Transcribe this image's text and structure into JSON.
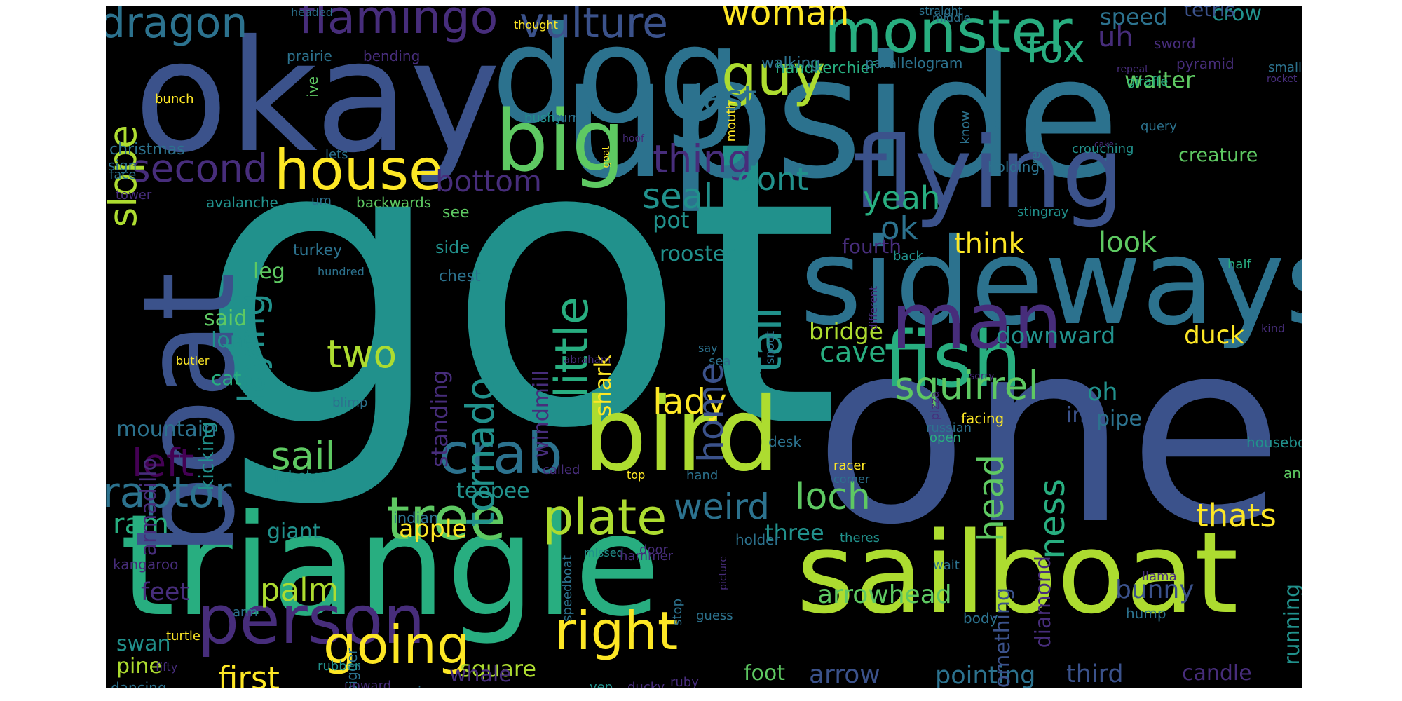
{
  "colors": {
    "background": "#000000",
    "page": "#ffffff",
    "palette": [
      "#440154",
      "#472d7b",
      "#3b528b",
      "#2c728e",
      "#21918c",
      "#28ae80",
      "#5ec962",
      "#addc30",
      "#fde725"
    ]
  },
  "words": [
    {
      "text": "got",
      "color": "#21918c"
    },
    {
      "text": "one",
      "color": "#3b528b"
    },
    {
      "text": "triangle",
      "color": "#28ae80"
    },
    {
      "text": "upside",
      "color": "#2c728e"
    },
    {
      "text": "okay",
      "color": "#3b528b"
    },
    {
      "text": "sailboat",
      "color": "#addc30"
    },
    {
      "text": "dog",
      "color": "#2c728e"
    },
    {
      "text": "sideways",
      "color": "#2c728e"
    },
    {
      "text": "boat",
      "color": "#3b528b"
    },
    {
      "text": "flying",
      "color": "#3b528b"
    },
    {
      "text": "bird",
      "color": "#addc30"
    },
    {
      "text": "fish",
      "color": "#28ae80"
    },
    {
      "text": "man",
      "color": "#472d7b"
    },
    {
      "text": "person",
      "color": "#472d7b"
    },
    {
      "text": "big",
      "color": "#5ec962"
    },
    {
      "text": "monster",
      "color": "#28ae80"
    },
    {
      "text": "flamingo",
      "color": "#472d7b"
    },
    {
      "text": "dragon",
      "color": "#2c728e"
    },
    {
      "text": "vulture",
      "color": "#3b528b"
    },
    {
      "text": "house",
      "color": "#fde725"
    },
    {
      "text": "tree",
      "color": "#5ec962"
    },
    {
      "text": "crab",
      "color": "#2c728e"
    },
    {
      "text": "guy",
      "color": "#addc30"
    },
    {
      "text": "going",
      "color": "#fde725"
    },
    {
      "text": "right",
      "color": "#fde725"
    },
    {
      "text": "squirrel",
      "color": "#5ec962"
    },
    {
      "text": "plate",
      "color": "#addc30"
    },
    {
      "text": "fox",
      "color": "#28ae80"
    },
    {
      "text": "woman",
      "color": "#fde725"
    },
    {
      "text": "second",
      "color": "#472d7b"
    },
    {
      "text": "last",
      "color": "#2c728e"
    },
    {
      "text": "thing",
      "color": "#472d7b"
    },
    {
      "text": "little",
      "color": "#28ae80"
    },
    {
      "text": "tail",
      "color": "#21918c"
    },
    {
      "text": "slope",
      "color": "#addc30"
    },
    {
      "text": "laying",
      "color": "#21918c"
    },
    {
      "text": "raptor",
      "color": "#2c728e"
    },
    {
      "text": "left",
      "color": "#440154"
    },
    {
      "text": "sail",
      "color": "#5ec962"
    },
    {
      "text": "two",
      "color": "#addc30"
    },
    {
      "text": "lady",
      "color": "#fde725"
    },
    {
      "text": "tornado",
      "color": "#21918c"
    },
    {
      "text": "loch",
      "color": "#5ec962"
    },
    {
      "text": "weird",
      "color": "#2c728e"
    },
    {
      "text": "head",
      "color": "#5ec962"
    },
    {
      "text": "ness",
      "color": "#28ae80"
    },
    {
      "text": "thats",
      "color": "#fde725"
    },
    {
      "text": "bottom",
      "color": "#472d7b"
    },
    {
      "text": "seal",
      "color": "#21918c"
    },
    {
      "text": "dont",
      "color": "#21918c"
    },
    {
      "text": "yeah",
      "color": "#28ae80"
    },
    {
      "text": "ok",
      "color": "#2c728e"
    },
    {
      "text": "think",
      "color": "#fde725"
    },
    {
      "text": "look",
      "color": "#5ec962"
    },
    {
      "text": "uh",
      "color": "#472d7b"
    },
    {
      "text": "speed",
      "color": "#2c728e"
    },
    {
      "text": "crow",
      "color": "#21918c"
    },
    {
      "text": "waiter",
      "color": "#5ec962"
    },
    {
      "text": "creature",
      "color": "#5ec962"
    },
    {
      "text": "home",
      "color": "#3b528b"
    },
    {
      "text": "pot",
      "color": "#21918c"
    },
    {
      "text": "rooster",
      "color": "#21918c"
    },
    {
      "text": "cave",
      "color": "#28ae80"
    },
    {
      "text": "bridge",
      "color": "#addc30"
    },
    {
      "text": "downward",
      "color": "#21918c"
    },
    {
      "text": "duck",
      "color": "#fde725"
    },
    {
      "text": "oh",
      "color": "#21918c"
    },
    {
      "text": "im",
      "color": "#3b528b"
    },
    {
      "text": "pipe",
      "color": "#2c728e"
    },
    {
      "text": "fourth",
      "color": "#472d7b"
    },
    {
      "text": "palm",
      "color": "#addc30"
    },
    {
      "text": "first",
      "color": "#fde725"
    },
    {
      "text": "arrowhead",
      "color": "#5ec962"
    },
    {
      "text": "arrow",
      "color": "#3b528b"
    },
    {
      "text": "pointing",
      "color": "#2c728e"
    },
    {
      "text": "third",
      "color": "#3b528b"
    },
    {
      "text": "candle",
      "color": "#472d7b"
    },
    {
      "text": "bunny",
      "color": "#3b528b"
    },
    {
      "text": "running",
      "color": "#21918c"
    },
    {
      "text": "diamond",
      "color": "#472d7b"
    },
    {
      "text": "something",
      "color": "#3b528b"
    },
    {
      "text": "square",
      "color": "#addc30"
    },
    {
      "text": "whale",
      "color": "#472d7b"
    },
    {
      "text": "foot",
      "color": "#5ec962"
    },
    {
      "text": "apple",
      "color": "#fde725"
    },
    {
      "text": "ram",
      "color": "#28ae80"
    },
    {
      "text": "giant",
      "color": "#21918c"
    },
    {
      "text": "three",
      "color": "#21918c"
    },
    {
      "text": "feet",
      "color": "#472d7b"
    },
    {
      "text": "swan",
      "color": "#21918c"
    },
    {
      "text": "pine",
      "color": "#addc30"
    },
    {
      "text": "mountain",
      "color": "#2c728e"
    },
    {
      "text": "cat",
      "color": "#28ae80"
    },
    {
      "text": "long",
      "color": "#21918c"
    },
    {
      "text": "said",
      "color": "#5ec962"
    },
    {
      "text": "leg",
      "color": "#5ec962"
    },
    {
      "text": "standing",
      "color": "#472d7b"
    },
    {
      "text": "shark",
      "color": "#fde725"
    },
    {
      "text": "windmill",
      "color": "#472d7b"
    },
    {
      "text": "teepee",
      "color": "#21918c"
    },
    {
      "text": "armadillo",
      "color": "#472d7b"
    },
    {
      "text": "kicking",
      "color": "#21918c"
    },
    {
      "text": "christmas",
      "color": "#2c728e"
    },
    {
      "text": "side",
      "color": "#21918c"
    },
    {
      "text": "see",
      "color": "#5ec962"
    },
    {
      "text": "turkey",
      "color": "#2c728e"
    },
    {
      "text": "chest",
      "color": "#2c728e"
    },
    {
      "text": "lobster",
      "color": "#21918c"
    },
    {
      "text": "indian",
      "color": "#2c728e"
    },
    {
      "text": "dancing",
      "color": "#2c728e"
    },
    {
      "text": "bigger",
      "color": "#2c728e"
    },
    {
      "text": "kangaroo",
      "color": "#472d7b"
    },
    {
      "text": "handkerchief",
      "color": "#28ae80"
    },
    {
      "text": "walking",
      "color": "#2c728e"
    },
    {
      "text": "parallelogram",
      "color": "#2c728e"
    },
    {
      "text": "tetris",
      "color": "#3b528b"
    },
    {
      "text": "sword",
      "color": "#472d7b"
    },
    {
      "text": "smaller",
      "color": "#2c728e"
    },
    {
      "text": "pyramid",
      "color": "#472d7b"
    },
    {
      "text": "giraffe",
      "color": "#28ae80"
    },
    {
      "text": "query",
      "color": "#2c728e"
    },
    {
      "text": "crouching",
      "color": "#21918c"
    },
    {
      "text": "holding",
      "color": "#2c728e"
    },
    {
      "text": "regular",
      "color": "#2c728e"
    },
    {
      "text": "know",
      "color": "#2c728e"
    },
    {
      "text": "prairie",
      "color": "#2c728e"
    },
    {
      "text": "bending",
      "color": "#472d7b"
    },
    {
      "text": "bushy",
      "color": "#21918c"
    },
    {
      "text": "turn",
      "color": "#2c728e"
    },
    {
      "text": "face",
      "color": "#2c728e"
    },
    {
      "text": "lets",
      "color": "#2c728e"
    },
    {
      "text": "avalanche",
      "color": "#21918c"
    },
    {
      "text": "backwards",
      "color": "#5ec962"
    },
    {
      "text": "um",
      "color": "#2c728e"
    },
    {
      "text": "stingray",
      "color": "#21918c"
    },
    {
      "text": "back",
      "color": "#21918c"
    },
    {
      "text": "half",
      "color": "#28ae80"
    },
    {
      "text": "lincoln",
      "color": "#2c728e"
    },
    {
      "text": "facing",
      "color": "#fde725"
    },
    {
      "text": "open",
      "color": "#28ae80"
    },
    {
      "text": "russian",
      "color": "#2c728e"
    },
    {
      "text": "houseboat",
      "color": "#21918c"
    },
    {
      "text": "animal",
      "color": "#5ec962"
    },
    {
      "text": "racer",
      "color": "#fde725"
    },
    {
      "text": "corner",
      "color": "#2c728e"
    },
    {
      "text": "theres",
      "color": "#21918c"
    },
    {
      "text": "holder",
      "color": "#2c728e"
    },
    {
      "text": "wait",
      "color": "#2c728e"
    },
    {
      "text": "desk",
      "color": "#2c728e"
    },
    {
      "text": "hand",
      "color": "#2c728e"
    },
    {
      "text": "top",
      "color": "#fde725"
    },
    {
      "text": "called",
      "color": "#472d7b"
    },
    {
      "text": "speedboat",
      "color": "#2c728e"
    },
    {
      "text": "missed",
      "color": "#21918c"
    },
    {
      "text": "door",
      "color": "#472d7b"
    },
    {
      "text": "hammer",
      "color": "#472d7b"
    },
    {
      "text": "stop",
      "color": "#2c728e"
    },
    {
      "text": "guess",
      "color": "#2c728e"
    },
    {
      "text": "ruby",
      "color": "#472d7b"
    },
    {
      "text": "body",
      "color": "#2c728e"
    },
    {
      "text": "hump",
      "color": "#2c728e"
    },
    {
      "text": "llama",
      "color": "#472d7b"
    },
    {
      "text": "arm",
      "color": "#2c728e"
    },
    {
      "text": "rubber",
      "color": "#21918c"
    },
    {
      "text": "upward",
      "color": "#472d7b"
    },
    {
      "text": "iron",
      "color": "#2c728e"
    },
    {
      "text": "yep",
      "color": "#21918c"
    },
    {
      "text": "ducky",
      "color": "#472d7b"
    },
    {
      "text": "turtle",
      "color": "#fde725"
    },
    {
      "text": "fifty",
      "color": "#472d7b"
    },
    {
      "text": "butler",
      "color": "#fde725"
    },
    {
      "text": "blimp",
      "color": "#2c728e"
    },
    {
      "text": "hundred",
      "color": "#2c728e"
    },
    {
      "text": "abraham",
      "color": "#472d7b"
    },
    {
      "text": "sea",
      "color": "#2c728e"
    },
    {
      "text": "say",
      "color": "#2c728e"
    },
    {
      "text": "snout",
      "color": "#2c728e"
    },
    {
      "text": "different",
      "color": "#472d7b"
    },
    {
      "text": "sorry",
      "color": "#472d7b"
    },
    {
      "text": "pizza",
      "color": "#472d7b"
    },
    {
      "text": "kind",
      "color": "#472d7b"
    },
    {
      "text": "praying",
      "color": "#21918c"
    },
    {
      "text": "gotta",
      "color": "#2c728e"
    },
    {
      "text": "picture",
      "color": "#472d7b"
    },
    {
      "text": "sign",
      "color": "#2c728e"
    },
    {
      "text": "tower",
      "color": "#472d7b"
    },
    {
      "text": "bunch",
      "color": "#fde725"
    },
    {
      "text": "ive",
      "color": "#5ec962"
    },
    {
      "text": "mouth",
      "color": "#fde725"
    },
    {
      "text": "goat",
      "color": "#fde725"
    },
    {
      "text": "hoof",
      "color": "#472d7b"
    },
    {
      "text": "table",
      "color": "#2c728e"
    },
    {
      "text": "cake",
      "color": "#472d7b"
    },
    {
      "text": "rocket",
      "color": "#472d7b"
    },
    {
      "text": "repeat",
      "color": "#472d7b"
    },
    {
      "text": "headed",
      "color": "#2c728e"
    },
    {
      "text": "thought",
      "color": "#fde725"
    },
    {
      "text": "straight",
      "color": "#2c728e"
    },
    {
      "text": "middle",
      "color": "#2c728e"
    }
  ]
}
